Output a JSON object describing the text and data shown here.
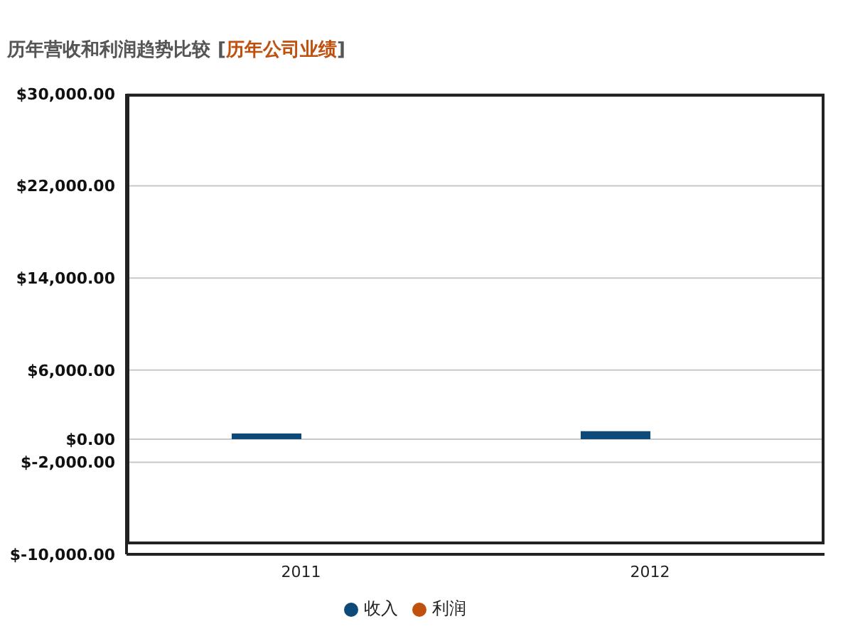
{
  "chart_data": {
    "type": "bar",
    "title": "历年营收和利润趋势比较",
    "subtitle": "[历年公司业绩]",
    "categories": [
      "2011",
      "2012"
    ],
    "series": [
      {
        "name": "收入",
        "color": "#0d4a7a",
        "values": [
          500,
          700
        ]
      },
      {
        "name": "利润",
        "color": "#c0500e",
        "values": [
          0,
          0
        ]
      }
    ],
    "ylim": [
      -10000,
      30000
    ],
    "yticks": [
      {
        "value": -10000,
        "label": "$-10,000.00"
      },
      {
        "value": -2000,
        "label": "$-2,000.00"
      },
      {
        "value": 0,
        "label": "$0.00"
      },
      {
        "value": 6000,
        "label": "$6,000.00"
      },
      {
        "value": 14000,
        "label": "$14,000.00"
      },
      {
        "value": 22000,
        "label": "$22,000.00"
      },
      {
        "value": 30000,
        "label": "$30,000.00"
      }
    ],
    "grid": "y",
    "legend": "bottom",
    "marker": "circle"
  }
}
